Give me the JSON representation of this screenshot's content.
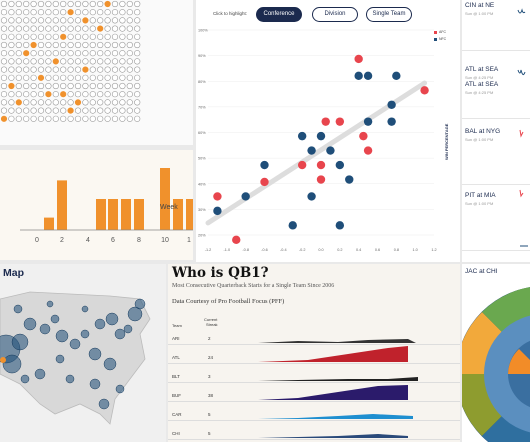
{
  "scatter": {
    "highlight_label": "Click to highlight:",
    "buttons": [
      "Conference",
      "Division",
      "Single Team"
    ],
    "active": "Conference",
    "y_axis_label": "WIN PERCENTAGE",
    "y_ticks": [
      "100%",
      "90%",
      "80%",
      "70%",
      "60%",
      "50%",
      "40%",
      "30%",
      "20%"
    ],
    "x_ticks": [
      "-1.2",
      "-1.0",
      "-0.8",
      "-0.6",
      "-0.4",
      "-0.2",
      "0.0",
      "0.2",
      "0.4",
      "0.6",
      "0.8",
      "1.0",
      "1.2"
    ],
    "legend": [
      "AFC",
      "NFC"
    ],
    "colors": {
      "red": "#e8454d",
      "navy": "#1f4e79"
    }
  },
  "bar_chart": {
    "x_label": "Week",
    "ticks": [
      "0",
      "2",
      "4",
      "6",
      "8",
      "10",
      "1"
    ],
    "color": "#f0912c"
  },
  "schedule": {
    "games": [
      {
        "label": "CIN at NE",
        "time": "Sun @ 1:00 PM"
      },
      {
        "label": "ATL at SEA",
        "time": "Sun @ 4:25 PM"
      },
      {
        "label": "ATL at SEA",
        "time": "Sun @ 4:25 PM"
      },
      {
        "label": "BAL at NYG",
        "time": "Sun @ 1:00 PM"
      },
      {
        "label": "PIT at MIA",
        "time": "Sun @ 1:00 PM"
      },
      {
        "label": "JAC at CHI",
        "time": ""
      }
    ]
  },
  "map": {
    "title": "Map"
  },
  "qb": {
    "title": "Who is QB1?",
    "subtitle": "Most Consecutive Quarterback Starts for a Single Team Since 2006",
    "credit": "Data Courtesy of Pro Football Focus (PFF)",
    "col_team": "Team",
    "col_streak_1": "Current",
    "col_streak_2": "Streak",
    "rows": [
      {
        "team": "ARI",
        "streak": "2"
      },
      {
        "team": "ATL",
        "streak": "24"
      },
      {
        "team": "BLT",
        "streak": "3"
      },
      {
        "team": "BUF",
        "streak": "38"
      },
      {
        "team": "CAR",
        "streak": "5"
      },
      {
        "team": "CHI",
        "streak": "5"
      }
    ]
  },
  "chart_data": [
    {
      "type": "scatter",
      "series": [
        {
          "name": "AFC",
          "color": "#e8454d",
          "points": [
            [
              -1.1,
              0.31
            ],
            [
              -0.9,
              0.13
            ],
            [
              -0.6,
              0.37
            ],
            [
              -0.2,
              0.44
            ],
            [
              0.0,
              0.44
            ],
            [
              0.0,
              0.38
            ],
            [
              0.05,
              0.62
            ],
            [
              0.2,
              0.62
            ],
            [
              0.4,
              0.88
            ],
            [
              0.45,
              0.56
            ],
            [
              0.5,
              0.5
            ],
            [
              1.1,
              0.75
            ]
          ]
        },
        {
          "name": "NFC",
          "color": "#1f4e79",
          "points": [
            [
              -1.1,
              0.25
            ],
            [
              -0.8,
              0.31
            ],
            [
              -0.6,
              0.44
            ],
            [
              -0.3,
              0.19
            ],
            [
              -0.2,
              0.56
            ],
            [
              -0.1,
              0.5
            ],
            [
              -0.1,
              0.31
            ],
            [
              0.0,
              0.56
            ],
            [
              0.1,
              0.5
            ],
            [
              0.2,
              0.44
            ],
            [
              0.2,
              0.19
            ],
            [
              0.3,
              0.38
            ],
            [
              0.4,
              0.81
            ],
            [
              0.5,
              0.81
            ],
            [
              0.5,
              0.62
            ],
            [
              0.75,
              0.62
            ],
            [
              0.8,
              0.81
            ],
            [
              0.75,
              0.69
            ]
          ]
        }
      ],
      "xlim": [
        -1.2,
        1.2
      ],
      "ylim": [
        0.15,
        1.0
      ]
    },
    {
      "type": "bar",
      "categories": [
        "1",
        "2",
        "3",
        "4",
        "5",
        "6",
        "7",
        "8",
        "9",
        "10",
        "11",
        "12"
      ],
      "values": [
        1,
        4,
        0,
        0,
        2.5,
        2.5,
        2.5,
        2.5,
        0,
        5,
        2.5,
        2.5
      ]
    }
  ]
}
